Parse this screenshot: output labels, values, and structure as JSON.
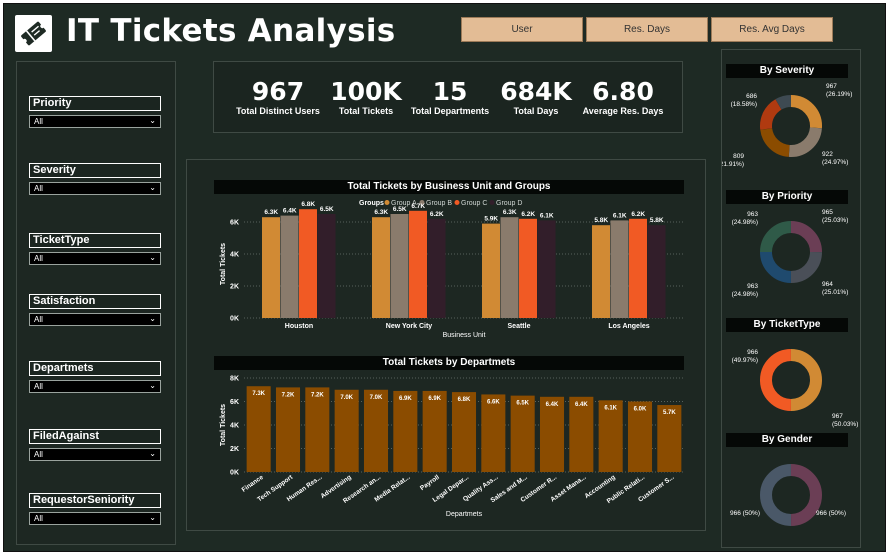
{
  "header": {
    "title": "IT Tickets Analysis",
    "buttons": [
      "User",
      "Res. Days",
      "Res. Avg Days"
    ]
  },
  "slicers": [
    {
      "label": "Priority",
      "value": "All"
    },
    {
      "label": "Severity",
      "value": "All"
    },
    {
      "label": "TicketType",
      "value": "All"
    },
    {
      "label": "Satisfaction",
      "value": "All"
    },
    {
      "label": "Departmets",
      "value": "All"
    },
    {
      "label": "FiledAgainst",
      "value": "All"
    },
    {
      "label": "RequestorSeniority",
      "value": "All"
    }
  ],
  "kpis": [
    {
      "value": "967",
      "label": "Total Distinct Users"
    },
    {
      "value": "100K",
      "label": "Total Tickets"
    },
    {
      "value": "15",
      "label": "Total Departments"
    },
    {
      "value": "684K",
      "label": "Total Days"
    },
    {
      "value": "6.80",
      "label": "Average Res. Days"
    }
  ],
  "colors": {
    "groupA": "#d18a34",
    "groupB": "#8a7b6c",
    "groupC": "#f15a24",
    "groupD": "#321e2a",
    "dept_bar": "#8b4c00",
    "background": "#1e2a24"
  },
  "chart_data": [
    {
      "type": "bar",
      "title": "Total Tickets by Business Unit and Groups",
      "xlabel": "Business Unit",
      "ylabel": "Total Tickets",
      "legend_title": "Groups",
      "categories": [
        "Houston",
        "New York City",
        "Seattle",
        "Los Angeles"
      ],
      "series": [
        {
          "name": "Group A",
          "values": [
            6300,
            6300,
            5900,
            5800
          ],
          "labels": [
            "6.3K",
            "6.3K",
            "5.9K",
            "5.8K"
          ]
        },
        {
          "name": "Group B",
          "values": [
            6400,
            6500,
            6300,
            6100
          ],
          "labels": [
            "6.4K",
            "6.5K",
            "6.3K",
            "6.1K"
          ]
        },
        {
          "name": "Group C",
          "values": [
            6800,
            6700,
            6200,
            6200
          ],
          "labels": [
            "6.8K",
            "6.7K",
            "6.2K",
            "6.2K"
          ]
        },
        {
          "name": "Group D",
          "values": [
            6500,
            6200,
            6100,
            5800
          ],
          "labels": [
            "6.5K",
            "6.2K",
            "6.1K",
            "5.8K"
          ]
        }
      ],
      "yticks": [
        "0K",
        "2K",
        "4K",
        "6K"
      ],
      "ylim": [
        0,
        7000
      ],
      "grid": true,
      "legend_position": "top"
    },
    {
      "type": "bar",
      "title": "Total Tickets by Departmets",
      "xlabel": "Departmets",
      "ylabel": "Total Tickets",
      "categories": [
        "Finance",
        "Tech Support",
        "Human Res...",
        "Advertising",
        "Research an...",
        "Media Relat...",
        "Payroll",
        "Legal Depar...",
        "Quality Ass...",
        "Sales and M...",
        "Customer R...",
        "Asset Mana...",
        "Accounting",
        "Public Relati...",
        "Customer S..."
      ],
      "values": [
        7300,
        7200,
        7200,
        7000,
        7000,
        6900,
        6900,
        6800,
        6600,
        6500,
        6400,
        6400,
        6100,
        6000,
        5700
      ],
      "labels": [
        "7.3K",
        "7.2K",
        "7.2K",
        "7.0K",
        "7.0K",
        "6.9K",
        "6.9K",
        "6.8K",
        "6.6K",
        "6.5K",
        "6.4K",
        "6.4K",
        "6.1K",
        "6.0K",
        "5.7K"
      ],
      "yticks": [
        "0K",
        "2K",
        "4K",
        "6K",
        "8K"
      ],
      "ylim": [
        0,
        8000
      ],
      "grid": true
    }
  ],
  "donuts": [
    {
      "title": "By Severity",
      "slices": [
        {
          "value": 967,
          "pct": 26.19,
          "label": "967",
          "pct_label": "(26.19%)",
          "color": "#d18a34"
        },
        {
          "value": 922,
          "pct": 24.97,
          "label": "922",
          "pct_label": "(24.97%)",
          "color": "#8a7b6c"
        },
        {
          "value": 809,
          "pct": 21.91,
          "label": "809",
          "pct_label": "(21.91%)",
          "color": "#8b4c00"
        },
        {
          "value": 686,
          "pct": 18.58,
          "label": "686",
          "pct_label": "(18.58%)",
          "color": "#b03a10"
        },
        {
          "value": 308,
          "pct": 8.35,
          "label": "",
          "pct_label": "",
          "color": "#3e4a52"
        }
      ]
    },
    {
      "title": "By Priority",
      "slices": [
        {
          "value": 965,
          "pct": 25.03,
          "label": "965",
          "pct_label": "(25.03%)",
          "color": "#6b3e55"
        },
        {
          "value": 964,
          "pct": 25.01,
          "label": "964",
          "pct_label": "(25.01%)",
          "color": "#4a4f58"
        },
        {
          "value": 963,
          "pct": 24.98,
          "label": "963",
          "pct_label": "(24.98%)",
          "color": "#1f4a6e"
        },
        {
          "value": 963,
          "pct": 24.98,
          "label": "963",
          "pct_label": "(24.98%)",
          "color": "#2f5a48"
        }
      ]
    },
    {
      "title": "By TicketType",
      "slices": [
        {
          "value": 967,
          "pct": 50.03,
          "label": "967",
          "pct_label": "(50.03%)",
          "color": "#d18a34"
        },
        {
          "value": 966,
          "pct": 49.97,
          "label": "966",
          "pct_label": "(49.97%)",
          "color": "#f15a24"
        }
      ]
    },
    {
      "title": "By Gender",
      "slices": [
        {
          "value": 966,
          "pct": 50,
          "label": "966 (50%)",
          "pct_label": "",
          "color": "#6b3e55"
        },
        {
          "value": 966,
          "pct": 50,
          "label": "966 (50%)",
          "pct_label": "",
          "color": "#4a5868"
        }
      ]
    }
  ]
}
